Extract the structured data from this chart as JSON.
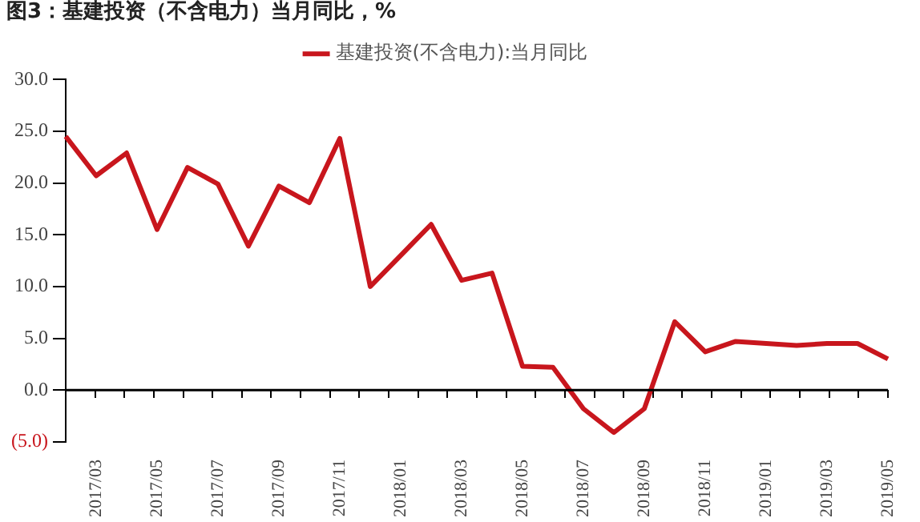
{
  "chart_data": {
    "type": "line",
    "title": "图3：基建投资（不含电力）当月同比，%",
    "categories": [
      null,
      "2017/03",
      null,
      "2017/05",
      null,
      "2017/07",
      null,
      "2017/09",
      null,
      "2017/11",
      null,
      "2018/01",
      null,
      "2018/03",
      null,
      "2018/05",
      null,
      "2018/07",
      null,
      "2018/09",
      null,
      "2018/11",
      null,
      "2019/01",
      null,
      "2019/03",
      null,
      "2019/05"
    ],
    "series": [
      {
        "name": "基建投资(不含电力):当月同比",
        "color": "#c8161d",
        "values": [
          24.5,
          20.7,
          22.9,
          15.5,
          21.5,
          19.9,
          13.9,
          19.7,
          18.1,
          24.3,
          10.0,
          13.0,
          16.0,
          10.6,
          11.3,
          2.3,
          2.2,
          -1.8,
          -4.1,
          -1.8,
          6.6,
          3.7,
          4.7,
          4.5,
          4.3,
          4.5,
          4.5,
          3.0
        ]
      }
    ],
    "ylim": [
      -5,
      30
    ],
    "yticks": [
      {
        "value": -5,
        "label": "(5.0)"
      },
      {
        "value": 0,
        "label": "0.0"
      },
      {
        "value": 5,
        "label": "5.0"
      },
      {
        "value": 10,
        "label": "10.0"
      },
      {
        "value": 15,
        "label": "15.0"
      },
      {
        "value": 20,
        "label": "20.0"
      },
      {
        "value": 25,
        "label": "25.0"
      },
      {
        "value": 30,
        "label": "30.0"
      }
    ],
    "ref_lines": [
      {
        "axis": "y",
        "value": 0,
        "color": "#000000"
      }
    ],
    "grid": false,
    "legend": "top",
    "marker": "none",
    "line_style": "solid"
  }
}
